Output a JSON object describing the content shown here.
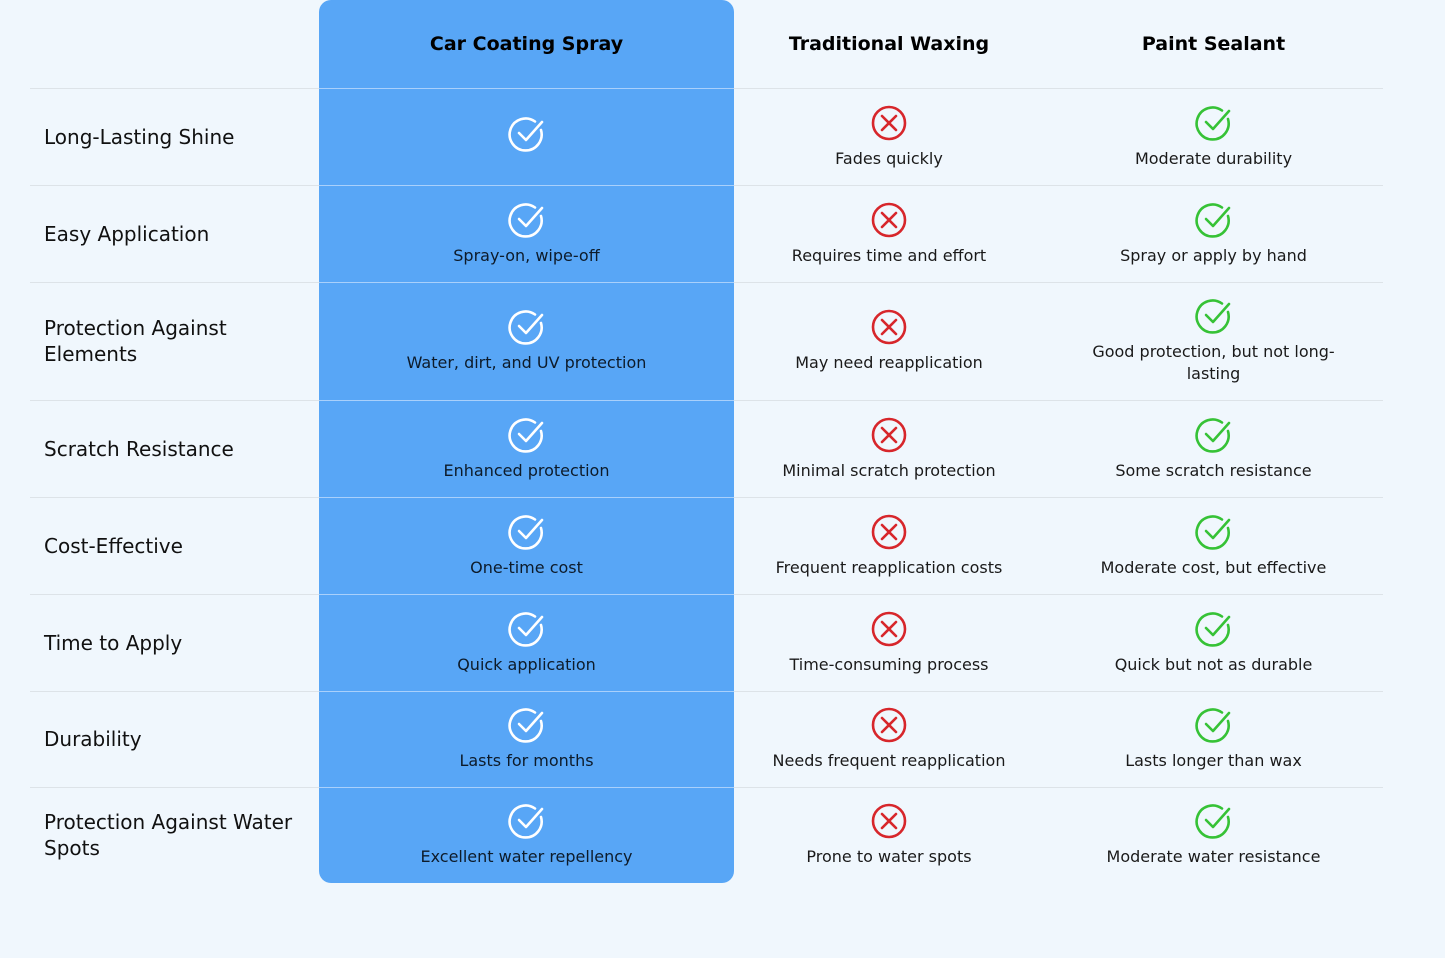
{
  "header": {
    "columns": [
      "Car Coating Spray",
      "Traditional Waxing",
      "Paint Sealant"
    ]
  },
  "table": {
    "rows": [
      {
        "feature": "Long-Lasting Shine",
        "cells": [
          {
            "status": "check"
          },
          {
            "status": "cross",
            "note": "Fades quickly"
          },
          {
            "status": "check",
            "note": "Moderate durability"
          }
        ]
      },
      {
        "feature": "Easy Application",
        "cells": [
          {
            "status": "check",
            "note": "Spray-on, wipe-off"
          },
          {
            "status": "cross",
            "note": "Requires time and effort"
          },
          {
            "status": "check",
            "note": "Spray or apply by hand"
          }
        ]
      },
      {
        "feature": "Protection Against Elements",
        "cells": [
          {
            "status": "check",
            "note": "Water, dirt, and UV protection"
          },
          {
            "status": "cross",
            "note": "May need reapplication"
          },
          {
            "status": "check",
            "note": "Good protection, but not long-lasting"
          }
        ]
      },
      {
        "feature": "Scratch Resistance",
        "cells": [
          {
            "status": "check",
            "note": "Enhanced protection"
          },
          {
            "status": "cross",
            "note": "Minimal scratch protection"
          },
          {
            "status": "check",
            "note": "Some scratch resistance"
          }
        ]
      },
      {
        "feature": "Cost-Effective",
        "cells": [
          {
            "status": "check",
            "note": "One-time cost"
          },
          {
            "status": "cross",
            "note": "Frequent reapplication costs"
          },
          {
            "status": "check",
            "note": "Moderate cost, but effective"
          }
        ]
      },
      {
        "feature": "Time to Apply",
        "cells": [
          {
            "status": "check",
            "note": "Quick application"
          },
          {
            "status": "cross",
            "note": "Time-consuming process"
          },
          {
            "status": "check",
            "note": "Quick but not as durable"
          }
        ]
      },
      {
        "feature": "Durability",
        "cells": [
          {
            "status": "check",
            "note": "Lasts for months"
          },
          {
            "status": "cross",
            "note": "Needs frequent reapplication"
          },
          {
            "status": "check",
            "note": "Lasts longer than wax"
          }
        ]
      },
      {
        "feature": "Protection Against Water Spots",
        "cells": [
          {
            "status": "check",
            "note": "Excellent water repellency"
          },
          {
            "status": "cross",
            "note": "Prone to water spots"
          },
          {
            "status": "check",
            "note": "Moderate water resistance"
          }
        ]
      }
    ]
  }
}
